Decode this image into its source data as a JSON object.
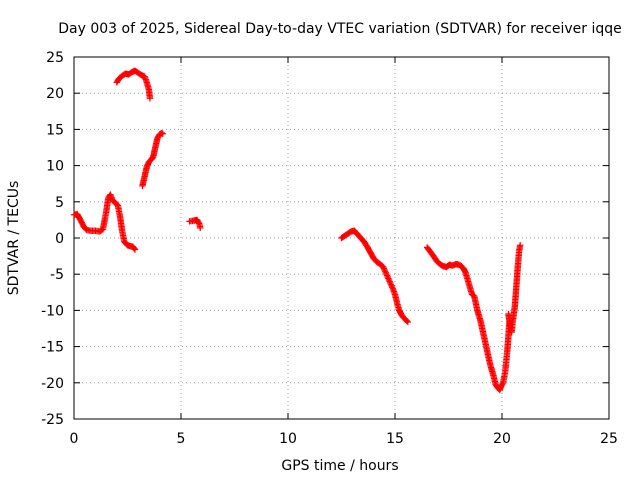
{
  "chart_data": {
    "type": "scatter",
    "title": "Day 003 of 2025, Sidereal Day-to-day VTEC variation (SDTVAR) for receiver iqqe",
    "xlabel": "GPS time / hours",
    "ylabel": "SDTVAR / TECUs",
    "xlim": [
      0,
      25
    ],
    "ylim": [
      -25,
      25
    ],
    "xticks": [
      0,
      5,
      10,
      15,
      20,
      25
    ],
    "yticks": [
      -25,
      -20,
      -15,
      -10,
      -5,
      0,
      5,
      10,
      15,
      20,
      25
    ],
    "grid": true,
    "marker": "plus",
    "color": "#ff0000",
    "segments": [
      {
        "name": "arc1",
        "points": [
          [
            0.0,
            3.2
          ],
          [
            0.15,
            3.3
          ],
          [
            0.3,
            2.5
          ],
          [
            0.45,
            1.6
          ],
          [
            0.6,
            1.1
          ],
          [
            0.8,
            1.0
          ],
          [
            1.0,
            1.0
          ],
          [
            1.2,
            0.9
          ],
          [
            1.35,
            1.2
          ],
          [
            1.5,
            3.5
          ],
          [
            1.6,
            5.5
          ],
          [
            1.7,
            6.0
          ],
          [
            1.8,
            5.2
          ],
          [
            1.95,
            4.8
          ],
          [
            2.05,
            4.5
          ],
          [
            2.15,
            3.0
          ],
          [
            2.25,
            1.0
          ],
          [
            2.35,
            -0.5
          ],
          [
            2.5,
            -1.0
          ],
          [
            2.6,
            -1.1
          ],
          [
            2.75,
            -1.2
          ],
          [
            2.85,
            -1.6
          ]
        ]
      },
      {
        "name": "arc2",
        "points": [
          [
            2.0,
            21.5
          ],
          [
            2.1,
            22.0
          ],
          [
            2.25,
            22.4
          ],
          [
            2.4,
            22.7
          ],
          [
            2.55,
            22.6
          ],
          [
            2.7,
            22.9
          ],
          [
            2.85,
            23.1
          ],
          [
            3.0,
            22.8
          ],
          [
            3.15,
            22.5
          ],
          [
            3.3,
            22.3
          ],
          [
            3.4,
            21.5
          ],
          [
            3.5,
            20.5
          ],
          [
            3.55,
            19.3
          ]
        ]
      },
      {
        "name": "arc3",
        "points": [
          [
            3.2,
            7.2
          ],
          [
            3.3,
            8.5
          ],
          [
            3.4,
            9.8
          ],
          [
            3.5,
            10.5
          ],
          [
            3.6,
            10.8
          ],
          [
            3.7,
            11.2
          ],
          [
            3.8,
            12.5
          ],
          [
            3.9,
            13.8
          ],
          [
            4.0,
            14.3
          ],
          [
            4.1,
            14.5
          ],
          [
            4.15,
            14.4
          ]
        ]
      },
      {
        "name": "arc4",
        "points": [
          [
            5.4,
            2.3
          ],
          [
            5.6,
            2.4
          ],
          [
            5.75,
            2.5
          ],
          [
            5.85,
            2.0
          ],
          [
            5.9,
            1.4
          ]
        ]
      },
      {
        "name": "arc5",
        "points": [
          [
            12.5,
            0.0
          ],
          [
            12.65,
            0.3
          ],
          [
            12.8,
            0.6
          ],
          [
            12.95,
            0.9
          ],
          [
            13.1,
            1.0
          ],
          [
            13.25,
            0.5
          ],
          [
            13.4,
            0.0
          ],
          [
            13.55,
            -0.5
          ],
          [
            13.7,
            -1.2
          ],
          [
            13.85,
            -2.0
          ],
          [
            14.0,
            -2.8
          ],
          [
            14.15,
            -3.3
          ],
          [
            14.3,
            -3.6
          ],
          [
            14.45,
            -4.0
          ],
          [
            14.6,
            -5.0
          ],
          [
            14.75,
            -6.0
          ],
          [
            14.9,
            -7.0
          ],
          [
            15.0,
            -7.8
          ],
          [
            15.1,
            -9.0
          ],
          [
            15.2,
            -10.0
          ],
          [
            15.3,
            -10.6
          ],
          [
            15.4,
            -11.0
          ],
          [
            15.5,
            -11.3
          ],
          [
            15.6,
            -11.6
          ]
        ]
      },
      {
        "name": "arc6",
        "points": [
          [
            16.5,
            -1.3
          ],
          [
            16.65,
            -1.9
          ],
          [
            16.8,
            -2.5
          ],
          [
            16.95,
            -3.2
          ],
          [
            17.1,
            -3.6
          ],
          [
            17.25,
            -3.9
          ],
          [
            17.4,
            -4.0
          ],
          [
            17.55,
            -3.7
          ],
          [
            17.7,
            -3.8
          ],
          [
            17.85,
            -3.6
          ],
          [
            18.0,
            -3.7
          ],
          [
            18.1,
            -3.9
          ],
          [
            18.2,
            -4.2
          ],
          [
            18.3,
            -4.8
          ],
          [
            18.4,
            -5.8
          ],
          [
            18.5,
            -6.8
          ],
          [
            18.6,
            -7.8
          ],
          [
            18.7,
            -8.0
          ],
          [
            18.85,
            -10.0
          ],
          [
            19.0,
            -11.5
          ],
          [
            19.15,
            -13.5
          ],
          [
            19.3,
            -15.5
          ],
          [
            19.45,
            -17.5
          ],
          [
            19.6,
            -19.0
          ],
          [
            19.7,
            -20.2
          ],
          [
            19.8,
            -20.7
          ],
          [
            19.9,
            -21.0
          ],
          [
            19.95,
            -20.5
          ],
          [
            20.05,
            -20.0
          ],
          [
            20.15,
            -18.5
          ],
          [
            20.2,
            -17.0
          ],
          [
            20.25,
            -15.5
          ],
          [
            20.3,
            -13.5
          ],
          [
            20.35,
            -11.5
          ],
          [
            20.3,
            -10.5
          ],
          [
            20.45,
            -13.0
          ],
          [
            20.5,
            -11.5
          ],
          [
            20.6,
            -9.5
          ],
          [
            20.65,
            -7.5
          ],
          [
            20.7,
            -5.5
          ],
          [
            20.75,
            -3.5
          ],
          [
            20.8,
            -1.8
          ],
          [
            20.85,
            -1.0
          ]
        ]
      }
    ]
  }
}
